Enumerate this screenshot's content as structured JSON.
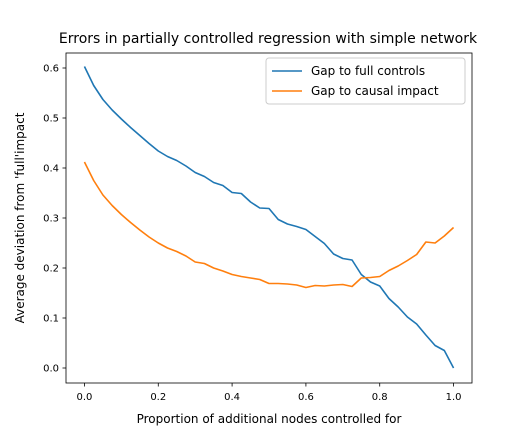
{
  "chart_data": {
    "type": "line",
    "title": "Errors in partially controlled regression with simple network",
    "xlabel": "Proportion of additional nodes controlled for",
    "ylabel": "Average deviation from 'full'impact",
    "xlim": [
      -0.05,
      1.05
    ],
    "ylim": [
      -0.03,
      0.63
    ],
    "xticks": [
      "0.0",
      "0.2",
      "0.4",
      "0.6",
      "0.8",
      "1.0"
    ],
    "yticks": [
      "0.0",
      "0.1",
      "0.2",
      "0.3",
      "0.4",
      "0.5",
      "0.6"
    ],
    "grid": false,
    "legend_position": "upper right",
    "x": [
      0.0,
      0.025,
      0.05,
      0.075,
      0.1,
      0.125,
      0.15,
      0.175,
      0.2,
      0.225,
      0.25,
      0.275,
      0.3,
      0.325,
      0.35,
      0.375,
      0.4,
      0.425,
      0.45,
      0.475,
      0.5,
      0.525,
      0.55,
      0.575,
      0.6,
      0.625,
      0.65,
      0.675,
      0.7,
      0.725,
      0.75,
      0.775,
      0.8,
      0.825,
      0.85,
      0.875,
      0.9,
      0.925,
      0.95,
      0.975,
      1.0
    ],
    "series": [
      {
        "name": "Gap to full controls",
        "color": "#1f77b4",
        "values": [
          0.603,
          0.565,
          0.537,
          0.516,
          0.498,
          0.481,
          0.465,
          0.449,
          0.434,
          0.423,
          0.415,
          0.404,
          0.391,
          0.383,
          0.371,
          0.365,
          0.351,
          0.349,
          0.332,
          0.32,
          0.319,
          0.297,
          0.288,
          0.283,
          0.277,
          0.263,
          0.249,
          0.228,
          0.219,
          0.216,
          0.187,
          0.172,
          0.164,
          0.139,
          0.122,
          0.102,
          0.088,
          0.066,
          0.045,
          0.035,
          0.0
        ]
      },
      {
        "name": "Gap to causal impact",
        "color": "#ff7f0e",
        "values": [
          0.412,
          0.375,
          0.346,
          0.325,
          0.307,
          0.291,
          0.276,
          0.262,
          0.25,
          0.24,
          0.233,
          0.224,
          0.212,
          0.209,
          0.2,
          0.194,
          0.187,
          0.183,
          0.18,
          0.177,
          0.169,
          0.169,
          0.168,
          0.166,
          0.161,
          0.165,
          0.164,
          0.166,
          0.167,
          0.163,
          0.18,
          0.181,
          0.183,
          0.195,
          0.204,
          0.215,
          0.227,
          0.252,
          0.25,
          0.264,
          0.281
        ]
      }
    ]
  }
}
